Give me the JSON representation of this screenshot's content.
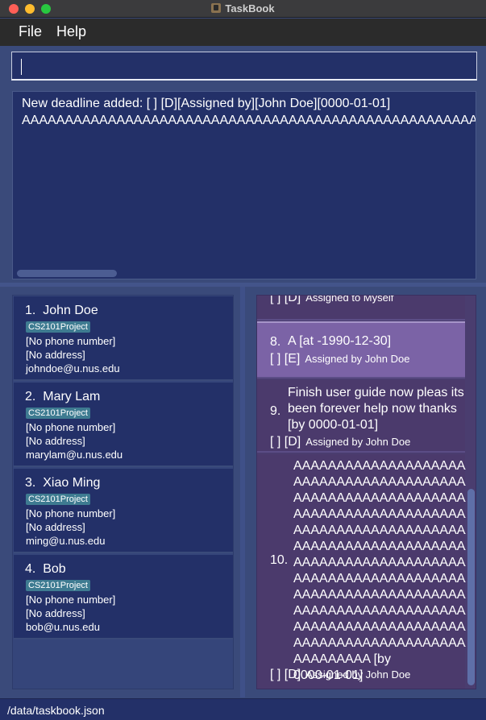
{
  "window": {
    "title": "TaskBook"
  },
  "menu": {
    "file": "File",
    "help": "Help"
  },
  "command": {
    "value": ""
  },
  "result": {
    "line1": "New deadline added: [  ]  [D][Assigned by][John Doe][0000-01-01]",
    "line2": "AAAAAAAAAAAAAAAAAAAAAAAAAAAAAAAAAAAAAAAAAAAAAAAAAAAAAAAAAAAAAAAAAAAAAAAAAAAAAAAAAAAA"
  },
  "persons": [
    {
      "index": "1.",
      "name": "John Doe",
      "tag": "CS2101Project",
      "phone": "[No phone number]",
      "address": "[No address]",
      "email": "johndoe@u.nus.edu"
    },
    {
      "index": "2.",
      "name": "Mary Lam",
      "tag": "CS2101Project",
      "phone": "[No phone number]",
      "address": "[No address]",
      "email": "marylam@u.nus.edu"
    },
    {
      "index": "3.",
      "name": "Xiao Ming",
      "tag": "CS2101Project",
      "phone": "[No phone number]",
      "address": "[No address]",
      "email": "ming@u.nus.edu"
    },
    {
      "index": "4.",
      "name": "Bob",
      "tag": "CS2101Project",
      "phone": "[No phone number]",
      "address": "[No address]",
      "email": "bob@u.nus.edu"
    }
  ],
  "tasks": [
    {
      "num": "",
      "lines": [],
      "status": "[  ]",
      "type": "[D]",
      "assign": "Assigned to  Myself"
    },
    {
      "num": "8.",
      "lines": [
        "A [at -1990-12-30]"
      ],
      "status": "[  ]",
      "type": "[E]",
      "assign": "Assigned by  John Doe"
    },
    {
      "num": "9.",
      "lines": [
        "Finish user guide now pleas its",
        "been forever help now thanks",
        "[by 0000-01-01]"
      ],
      "status": "[  ]",
      "type": "[D]",
      "assign": "Assigned by  John Doe"
    },
    {
      "num": "10.",
      "lines": [
        "AAAAAAAAAAAAAAAAAAAAA",
        "AAAAAAAAAAAAAAAAAAAAA",
        "AAAAAAAAAAAAAAAAAAAAA",
        "AAAAAAAAAAAAAAAAAAAAA",
        "AAAAAAAAAAAAAAAAAAAAA",
        "AAAAAAAAAAAAAAAAAAAAA",
        "AAAAAAAAAAAAAAAAAAAAA",
        "AAAAAAAAAAAAAAAAAAAAA",
        "AAAAAAAAAAAAAAAAAAAAA",
        "AAAAAAAAAAAAAAAAAAAAA",
        "AAAAAAAAAAAAAAAAAAAAA",
        "AAAAAAAAAAAAAAAAAAAAA",
        "AAAAAAAAA [by",
        "0000-01-01]"
      ],
      "status": "[  ]",
      "type": "[D]",
      "assign": "Assigned by  John Doe"
    }
  ],
  "status": {
    "path": "/data/taskbook.json"
  }
}
